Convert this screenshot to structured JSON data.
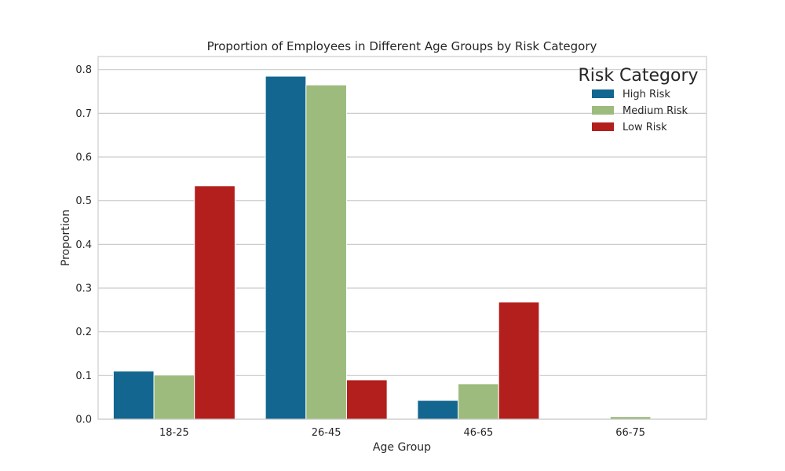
{
  "chart_data": {
    "type": "bar",
    "title": "Proportion of Employees in Different Age Groups by Risk Category",
    "xlabel": "Age Group",
    "ylabel": "Proportion",
    "categories": [
      "18-25",
      "26-45",
      "46-65",
      "66-75"
    ],
    "series": [
      {
        "name": "High Risk",
        "color": "#12668f",
        "values": [
          0.11,
          0.785,
          0.043,
          0.0
        ]
      },
      {
        "name": "Medium Risk",
        "color": "#9cbb7d",
        "values": [
          0.101,
          0.765,
          0.081,
          0.006
        ]
      },
      {
        "name": "Low Risk",
        "color": "#b21f1c",
        "values": [
          0.534,
          0.09,
          0.268,
          0.0
        ]
      }
    ],
    "ylim": [
      0,
      0.83
    ],
    "yticks": [
      "0.0",
      "0.1",
      "0.2",
      "0.3",
      "0.4",
      "0.5",
      "0.6",
      "0.7",
      "0.8"
    ],
    "grid": true,
    "legend": {
      "title": "Risk Category",
      "position": "top-right"
    }
  }
}
